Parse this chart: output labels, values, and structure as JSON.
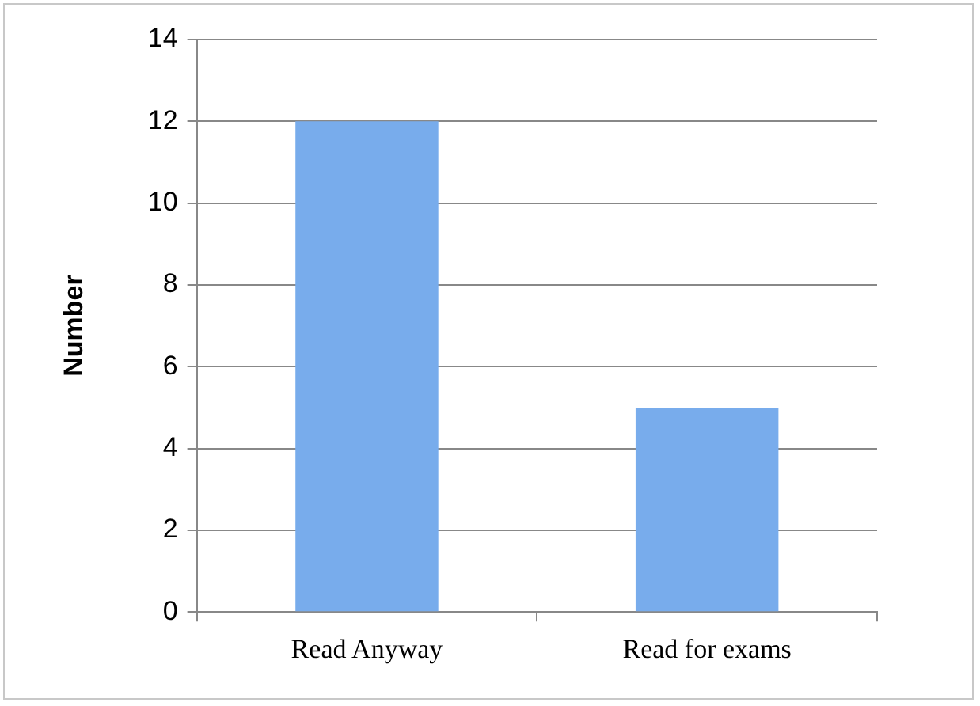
{
  "chart_data": {
    "type": "bar",
    "ylabel": "Number",
    "categories": [
      "Read Anyway",
      "Read for exams"
    ],
    "values": [
      12,
      5
    ],
    "color": "#78acec",
    "ylim": [
      0,
      14
    ],
    "yticks": [
      0,
      2,
      4,
      6,
      8,
      10,
      12,
      14
    ],
    "grid": "y",
    "legend": false
  }
}
